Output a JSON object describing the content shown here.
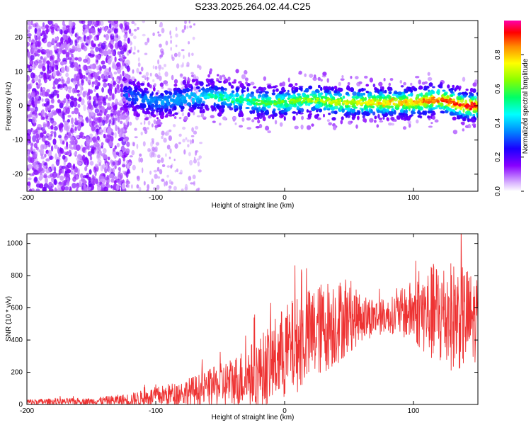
{
  "title": "S233.2025.264.02.44.C25",
  "chart_data": [
    {
      "id": "spectrogram",
      "type": "heatmap",
      "xlabel": "Height of straight line (km)",
      "ylabel": "Frequency (Hz)",
      "xlim": [
        -200,
        150
      ],
      "ylim": [
        -25,
        25
      ],
      "x_ticks": [
        -200,
        -100,
        0,
        100
      ],
      "y_ticks": [
        -20,
        -10,
        0,
        10,
        20
      ],
      "colorbar": {
        "label": "Normalized spectral amplitude",
        "range": [
          0,
          1
        ],
        "ticks": [
          "0.0",
          "0.2",
          "0.4",
          "0.6",
          "0.8"
        ]
      },
      "ridge": {
        "description_points": [
          {
            "x": -120,
            "y": 3
          },
          {
            "x": -100,
            "y": 1
          },
          {
            "x": -80,
            "y": 2
          },
          {
            "x": -60,
            "y": 3
          },
          {
            "x": -40,
            "y": 2
          },
          {
            "x": -20,
            "y": 1
          },
          {
            "x": 0,
            "y": 1
          },
          {
            "x": 20,
            "y": 2
          },
          {
            "x": 40,
            "y": 1
          },
          {
            "x": 60,
            "y": 1
          },
          {
            "x": 80,
            "y": 1
          },
          {
            "x": 100,
            "y": 1
          },
          {
            "x": 120,
            "y": 2
          },
          {
            "x": 140,
            "y": 0
          }
        ]
      }
    },
    {
      "id": "snr",
      "type": "line",
      "xlabel": "Height of straight line (km)",
      "ylabel": "SNR (10 * v/v)",
      "xlim": [
        -200,
        150
      ],
      "ylim": [
        0,
        1060
      ],
      "x_ticks": [
        -200,
        -100,
        0,
        100
      ],
      "y_ticks": [
        0,
        200,
        400,
        600,
        800,
        1000
      ],
      "series": [
        {
          "name": "SNR",
          "color": "#ee3333",
          "envelope": [
            {
              "x": -200,
              "mean": 15,
              "amp": 20
            },
            {
              "x": -150,
              "mean": 20,
              "amp": 20
            },
            {
              "x": -120,
              "mean": 30,
              "amp": 40
            },
            {
              "x": -100,
              "mean": 50,
              "amp": 60
            },
            {
              "x": -80,
              "mean": 70,
              "amp": 80
            },
            {
              "x": -60,
              "mean": 100,
              "amp": 110
            },
            {
              "x": -40,
              "mean": 140,
              "amp": 160
            },
            {
              "x": -20,
              "mean": 200,
              "amp": 220
            },
            {
              "x": 0,
              "mean": 320,
              "amp": 300
            },
            {
              "x": 20,
              "mean": 430,
              "amp": 300
            },
            {
              "x": 40,
              "mean": 520,
              "amp": 280
            },
            {
              "x": 60,
              "mean": 540,
              "amp": 150
            },
            {
              "x": 80,
              "mean": 550,
              "amp": 100
            },
            {
              "x": 100,
              "mean": 580,
              "amp": 200
            },
            {
              "x": 120,
              "mean": 560,
              "amp": 350
            },
            {
              "x": 140,
              "mean": 540,
              "amp": 330
            },
            {
              "x": 150,
              "mean": 520,
              "amp": 250
            }
          ]
        }
      ]
    }
  ]
}
